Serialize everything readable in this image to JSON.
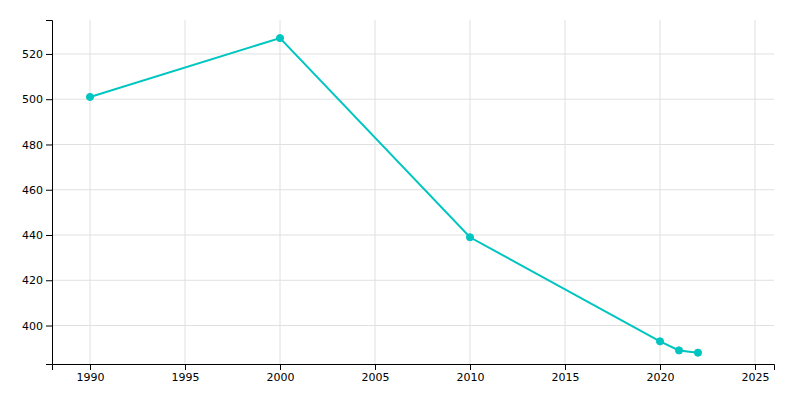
{
  "chart_data": {
    "type": "line",
    "x": [
      1990,
      2000,
      2010,
      2020,
      2021,
      2022
    ],
    "values": [
      501,
      527,
      439,
      393,
      389,
      388
    ],
    "color": "#00C5C0",
    "marker": "circle",
    "xlim": [
      1988,
      2026
    ],
    "ylim": [
      383,
      535
    ],
    "xticks": [
      1990,
      1995,
      2000,
      2005,
      2010,
      2015,
      2020,
      2025
    ],
    "yticks": [
      400,
      420,
      440,
      460,
      480,
      500,
      520
    ],
    "grid": true
  }
}
